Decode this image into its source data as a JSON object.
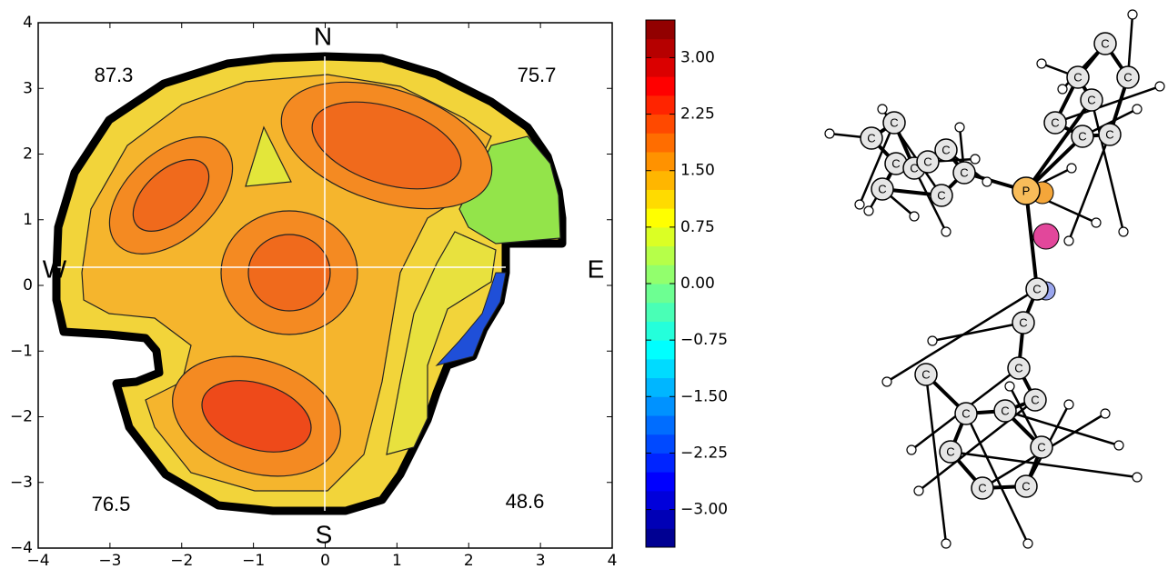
{
  "chart_data": {
    "type": "contour",
    "xlim": [
      -4,
      4
    ],
    "ylim": [
      -4,
      4
    ],
    "xticks": [
      {
        "value": -4,
        "label": "−4"
      },
      {
        "value": -3,
        "label": "−3"
      },
      {
        "value": -2,
        "label": "−2"
      },
      {
        "value": -1,
        "label": "−1"
      },
      0,
      1,
      2,
      3,
      4
    ],
    "yticks": [
      {
        "value": -4,
        "label": "−4"
      },
      {
        "value": -3,
        "label": "−3"
      },
      {
        "value": -2,
        "label": "−2"
      },
      {
        "value": -1,
        "label": "−1"
      },
      0,
      1,
      2,
      3,
      4
    ],
    "compass_labels": [
      "N",
      "E",
      "S",
      "W"
    ],
    "quadrant_values": [
      87.3,
      75.7,
      76.5,
      48.6
    ],
    "colorbar": {
      "lim": [
        -3.5,
        3.5
      ],
      "ticks": [
        {
          "value": 3,
          "label": "3.00"
        },
        {
          "value": 2.25,
          "label": "2.25"
        },
        {
          "value": 1.5,
          "label": "1.50"
        },
        {
          "value": 0.75,
          "label": "0.75"
        },
        {
          "value": 0,
          "label": "0.00"
        },
        {
          "value": -0.75,
          "label": "−0.75"
        },
        {
          "value": -1.5,
          "label": "−1.50"
        },
        {
          "value": -2.25,
          "label": "−2.25"
        },
        {
          "value": -3,
          "label": "−3.00"
        }
      ]
    }
  },
  "molecule": {
    "atom_labels": [
      "C",
      "C",
      "C",
      "C",
      "C",
      "C",
      "C",
      "C",
      "C",
      "C",
      "C",
      "C",
      "C",
      "C",
      "P",
      "C",
      "C",
      "C",
      "C",
      "C",
      "C",
      "C",
      "C",
      "C",
      "C",
      "C",
      "C",
      "C"
    ]
  }
}
